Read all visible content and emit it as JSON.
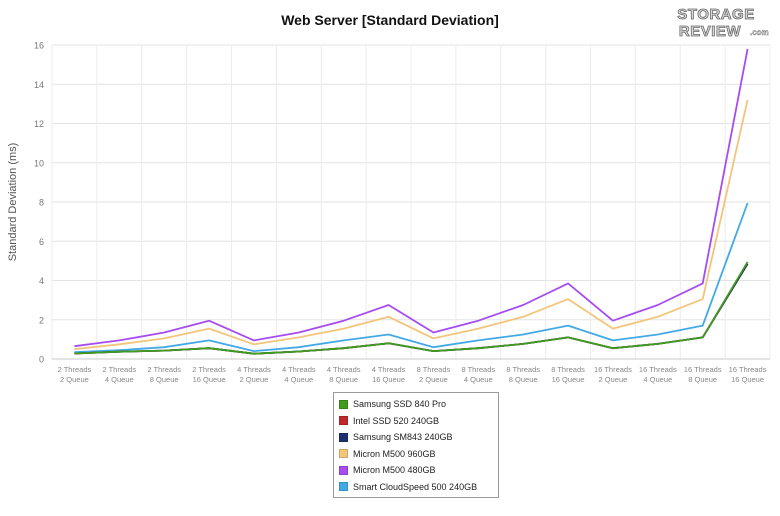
{
  "chart_data": {
    "type": "line",
    "title": "Web Server [Standard Deviation]",
    "xlabel": "",
    "ylabel": "Standard Deviation (ms)",
    "ylim": [
      0,
      16
    ],
    "yticks": [
      0,
      2,
      4,
      6,
      8,
      10,
      12,
      14,
      16
    ],
    "grid": true,
    "legend_position": "bottom",
    "categories": [
      [
        "2 Threads",
        "2 Queue"
      ],
      [
        "2 Threads",
        "4 Queue"
      ],
      [
        "2 Threads",
        "8 Queue"
      ],
      [
        "2 Threads",
        "16 Queue"
      ],
      [
        "4 Threads",
        "2 Queue"
      ],
      [
        "4 Threads",
        "4 Queue"
      ],
      [
        "4 Threads",
        "8 Queue"
      ],
      [
        "4 Threads",
        "16 Queue"
      ],
      [
        "8 Threads",
        "2 Queue"
      ],
      [
        "8 Threads",
        "4 Queue"
      ],
      [
        "8 Threads",
        "8 Queue"
      ],
      [
        "8 Threads",
        "16 Queue"
      ],
      [
        "16 Threads",
        "2 Queue"
      ],
      [
        "16 Threads",
        "4 Queue"
      ],
      [
        "16 Threads",
        "8 Queue"
      ],
      [
        "16 Threads",
        "16 Queue"
      ]
    ],
    "series": [
      {
        "name": "Samsung SSD 840 Pro",
        "color": "#3f9c1f",
        "values": [
          0.28,
          0.37,
          0.43,
          0.55,
          0.27,
          0.38,
          0.55,
          0.8,
          0.4,
          0.55,
          0.77,
          1.1,
          0.55,
          0.77,
          1.1,
          4.95
        ]
      },
      {
        "name": "Intel SSD 520 240GB",
        "color": "#c0282b",
        "values": [
          0.28,
          0.37,
          0.43,
          0.55,
          0.27,
          0.38,
          0.55,
          0.8,
          0.4,
          0.55,
          0.77,
          1.1,
          0.55,
          0.77,
          1.1,
          4.85
        ]
      },
      {
        "name": "Samsung SM843 240GB",
        "color": "#1f2f6e",
        "values": [
          0.28,
          0.37,
          0.43,
          0.55,
          0.27,
          0.38,
          0.55,
          0.8,
          0.4,
          0.55,
          0.77,
          1.1,
          0.55,
          0.77,
          1.1,
          4.85
        ]
      },
      {
        "name": "Micron M500 960GB",
        "color": "#f2c57a",
        "values": [
          0.5,
          0.75,
          1.05,
          1.55,
          0.75,
          1.1,
          1.55,
          2.15,
          1.05,
          1.55,
          2.15,
          3.05,
          1.55,
          2.15,
          3.05,
          13.2
        ]
      },
      {
        "name": "Micron M500 480GB",
        "color": "#a64cf0",
        "values": [
          0.65,
          0.95,
          1.35,
          1.95,
          0.95,
          1.35,
          1.95,
          2.75,
          1.35,
          1.95,
          2.75,
          3.85,
          1.95,
          2.75,
          3.85,
          15.8
        ]
      },
      {
        "name": "Smart CloudSpeed 500 240GB",
        "color": "#42a9e6",
        "values": [
          0.35,
          0.45,
          0.6,
          0.95,
          0.4,
          0.6,
          0.95,
          1.25,
          0.6,
          0.95,
          1.25,
          1.7,
          0.95,
          1.25,
          1.7,
          7.95
        ]
      }
    ]
  },
  "logo": {
    "line1": "STORAGE",
    "line2": "REVIEW",
    "suffix": ".com"
  }
}
